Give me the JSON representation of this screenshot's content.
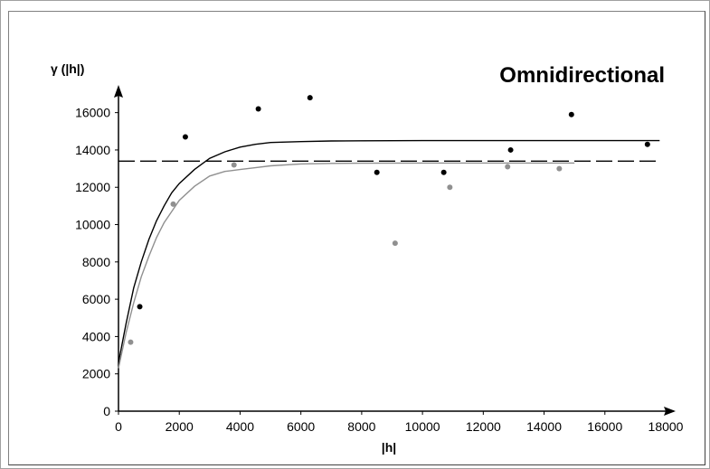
{
  "chart_data": {
    "type": "scatter",
    "title": "Omnidirectional",
    "xlabel": "|h|",
    "ylabel": "γ (|h|)",
    "xlim": [
      0,
      18000
    ],
    "ylim": [
      0,
      17000
    ],
    "xticks": [
      0,
      2000,
      4000,
      6000,
      8000,
      10000,
      12000,
      14000,
      16000,
      18000
    ],
    "yticks": [
      0,
      2000,
      4000,
      6000,
      8000,
      10000,
      12000,
      14000,
      16000
    ],
    "grid": false,
    "colors": {
      "black": "#000000",
      "gray": "#909090"
    },
    "series": [
      {
        "kind": "points",
        "color": "#000000",
        "x": [
          700,
          2200,
          4600,
          6300,
          8500,
          10700,
          12900,
          14900,
          17400
        ],
        "y": [
          5600,
          14700,
          16200,
          16800,
          12800,
          12800,
          14000,
          15900,
          14300
        ]
      },
      {
        "kind": "points",
        "color": "#909090",
        "x": [
          400,
          1800,
          3800,
          9100,
          10900,
          12800,
          14500
        ],
        "y": [
          3700,
          11100,
          13200,
          9000,
          12000,
          13100,
          13000
        ]
      },
      {
        "kind": "curve",
        "color": "#000000",
        "x": [
          0,
          250,
          500,
          750,
          1000,
          1250,
          1500,
          1750,
          2000,
          2500,
          3000,
          3500,
          4000,
          4500,
          5000,
          6000,
          7000,
          8000,
          10000,
          12000,
          14000,
          16000,
          17800
        ],
        "y": [
          2600,
          4700,
          6600,
          8000,
          9200,
          10200,
          11000,
          11700,
          12200,
          12950,
          13550,
          13900,
          14150,
          14300,
          14400,
          14450,
          14480,
          14490,
          14500,
          14500,
          14500,
          14500,
          14500
        ]
      },
      {
        "kind": "curve",
        "color": "#909090",
        "x": [
          0,
          250,
          500,
          750,
          1000,
          1250,
          1500,
          1750,
          2000,
          2500,
          3000,
          3500,
          4000,
          4500,
          5000,
          6000,
          7000,
          8000,
          10000,
          12000,
          13000,
          14000,
          15000
        ],
        "y": [
          2300,
          4200,
          5800,
          7200,
          8300,
          9300,
          10100,
          10700,
          11300,
          12050,
          12600,
          12850,
          12950,
          13050,
          13150,
          13250,
          13280,
          13290,
          13300,
          13300,
          13300,
          13300,
          13300
        ]
      },
      {
        "kind": "dashed-line",
        "color": "#000000",
        "x": [
          0,
          17800
        ],
        "y": [
          13400,
          13400
        ]
      }
    ]
  }
}
